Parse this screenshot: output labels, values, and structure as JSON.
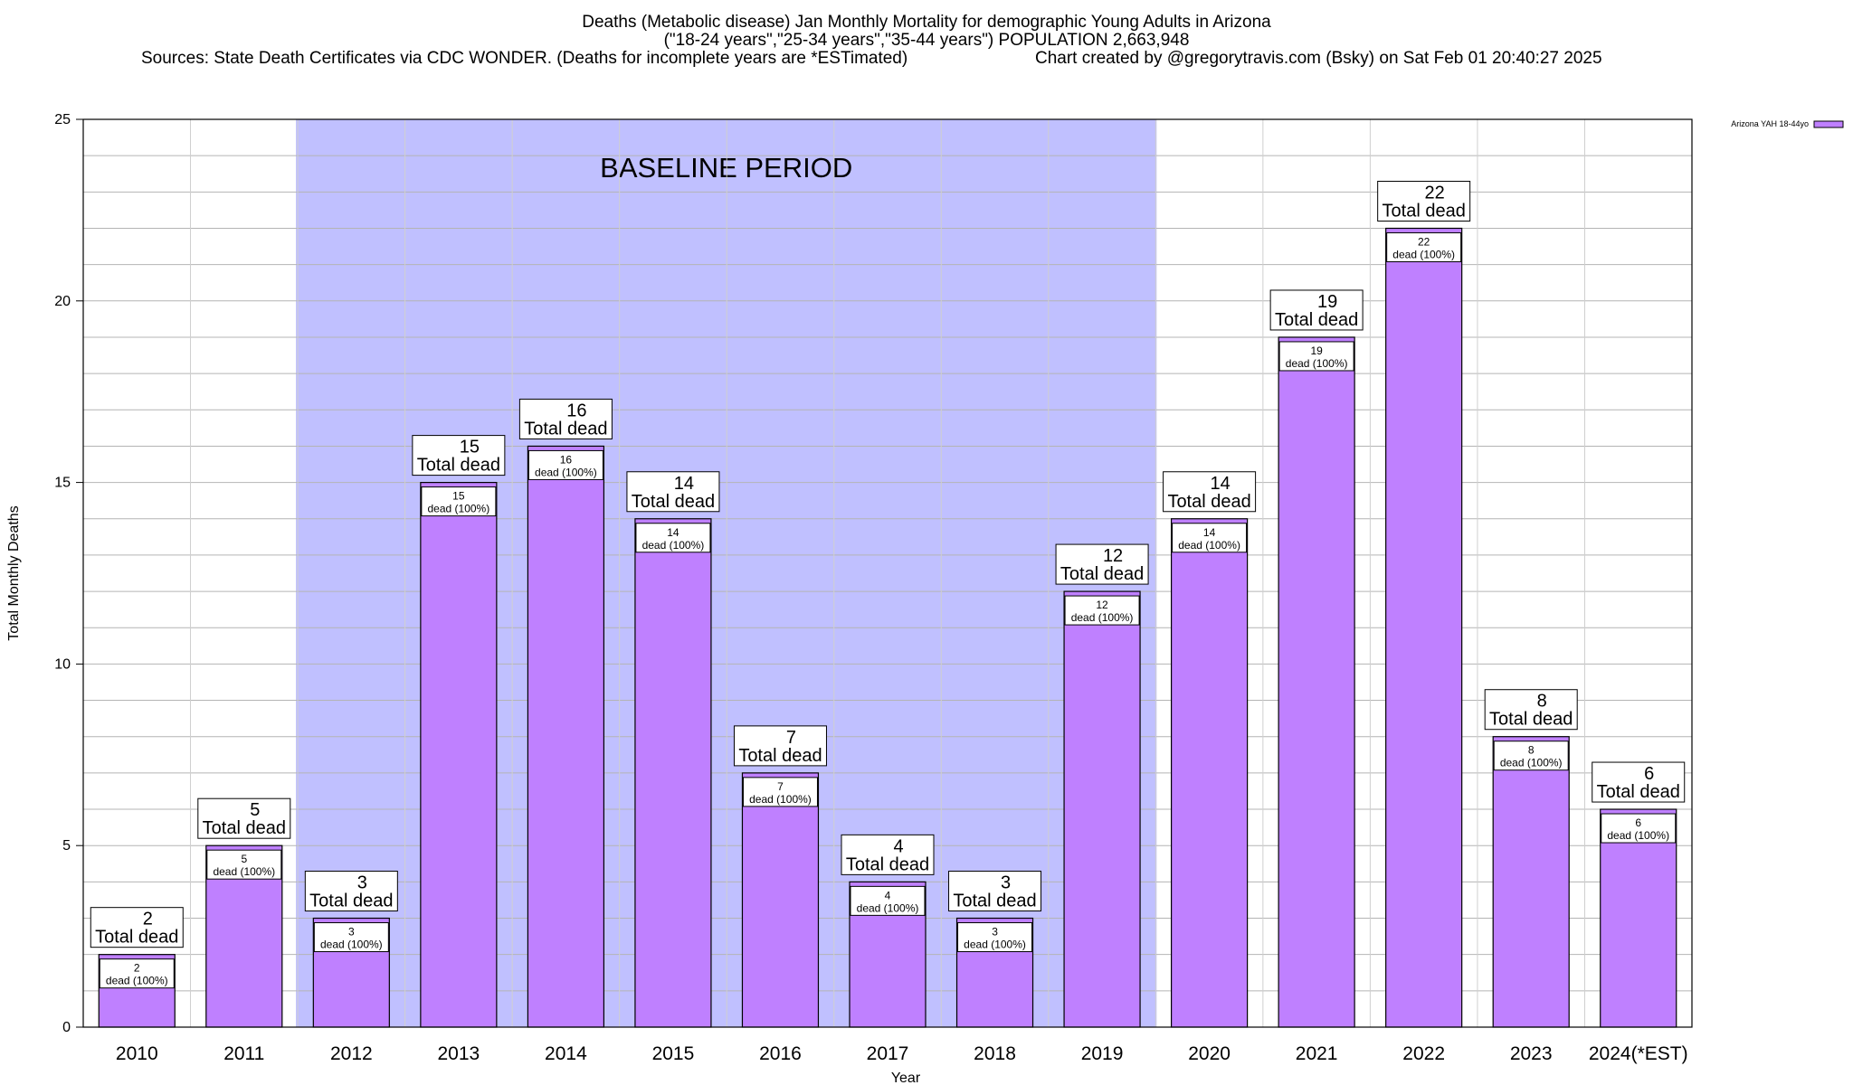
{
  "header": {
    "title_line1": "Deaths (Metabolic disease) Jan Monthly Mortality for demographic Young Adults in Arizona",
    "title_line2": "(\"18-24 years\",\"25-34 years\",\"35-44 years\") POPULATION 2,663,948",
    "sources": "Sources: State Death Certificates via CDC WONDER. (Deaths for incomplete years are *ESTimated)",
    "credit": "Chart created by @gregorytravis.com (Bsky) on Sat Feb 01 20:40:27 2025"
  },
  "chart_data": {
    "type": "bar",
    "xlabel": "Year",
    "ylabel": "Total Monthly Deaths",
    "ylim": [
      0,
      25
    ],
    "yticks": [
      0,
      5,
      10,
      15,
      20,
      25
    ],
    "grid": true,
    "legend_position": "top-right",
    "categories": [
      "2010",
      "2011",
      "2012",
      "2013",
      "2014",
      "2015",
      "2016",
      "2017",
      "2018",
      "2019",
      "2020",
      "2021",
      "2022",
      "2023",
      "2024(*EST)"
    ],
    "series": [
      {
        "name": "Arizona YAH 18-44yo",
        "color": "#bf80ff",
        "values": [
          2,
          5,
          3,
          15,
          16,
          14,
          7,
          4,
          3,
          12,
          14,
          19,
          22,
          8,
          6
        ]
      }
    ],
    "total_label": "Total dead",
    "inner_label": "dead (100%)",
    "baseline": {
      "label": "BASELINE PERIOD",
      "start": "2012",
      "end": "2019",
      "color": "#c0c0ff"
    }
  }
}
